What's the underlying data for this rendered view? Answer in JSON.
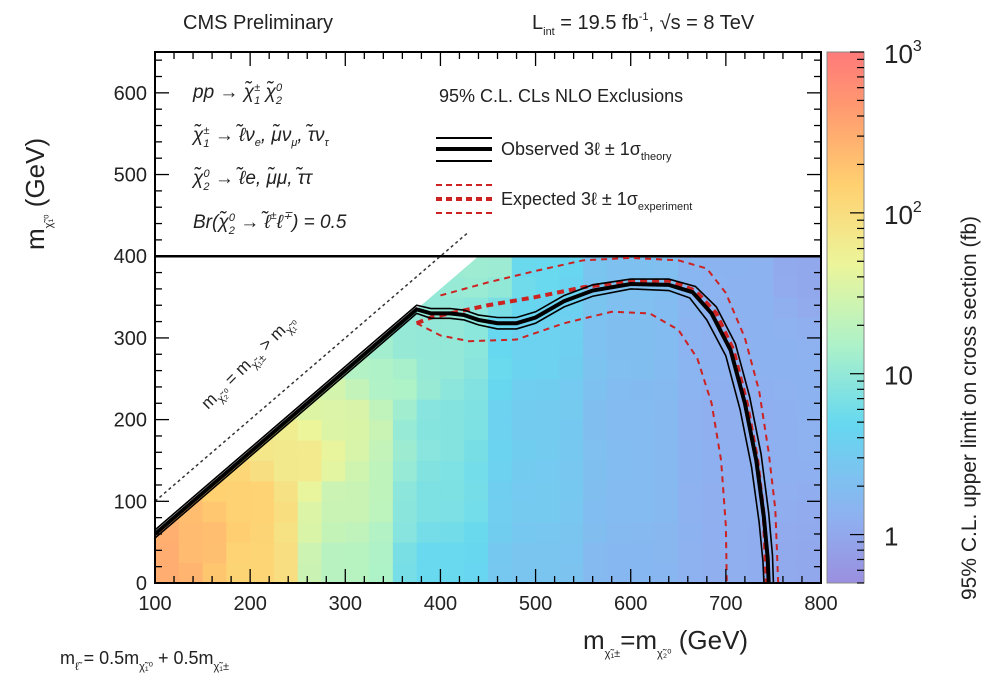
{
  "header": {
    "left": "CMS Preliminary",
    "right_lumi": "L",
    "right_lumi_sub": "int",
    "right_lumi_rest": " = 19.5 fb",
    "right_lumi_sup": "-1",
    "right_energy": ", √s = 8 TeV"
  },
  "legend": {
    "title": "95% C.L. CLs NLO Exclusions",
    "observed": "Observed 3ℓ ± 1σ",
    "observed_sub": "theory",
    "expected": "Expected 3ℓ ± 1σ",
    "expected_sub": "experiment"
  },
  "process": {
    "line1_a": "pp → χ̃",
    "line1_s1": "1",
    "line1_p1": "±",
    "line1_b": " χ̃",
    "line1_s2": "2",
    "line1_p2": "0",
    "line2_a": "χ̃",
    "line2_s1": "1",
    "line2_p1": "±",
    "line2_b": " → ℓ̃ν",
    "line2_s2": "e",
    "line2_c": ", μ̃ν",
    "line2_s3": "μ",
    "line2_d": ", τ̃ν",
    "line2_s4": "τ",
    "line3_a": "χ̃",
    "line3_s1": "2",
    "line3_p1": "0",
    "line3_b": " → ℓ̃e, μ̃μ, τ̃τ",
    "line4_a": "Br(χ̃",
    "line4_s1": "2",
    "line4_p1": "0",
    "line4_b": " → ℓ̃",
    "line4_p2": "±",
    "line4_c": "ℓ",
    "line4_p3": "∓",
    "line4_d": ") = 0.5"
  },
  "diag_label": {
    "a": "m",
    "s1": "χ̃₂⁰",
    "b": " = m",
    "s2": "χ̃₁±",
    "c": " > m",
    "s3": "χ̃₁⁰"
  },
  "footnote": {
    "a": "m",
    "s1": "ℓ̃",
    "b": " = 0.5m",
    "s2": "χ̃₁⁰",
    "c": " + 0.5m",
    "s3": "χ̃₁±"
  },
  "axes": {
    "ylabel_main": "m",
    "ylabel_sub": "χ̃₁⁰",
    "ylabel_unit": " (GeV)",
    "xlabel_a": "m",
    "xlabel_s1": "χ̃₁±",
    "xlabel_b": "=m",
    "xlabel_s2": "χ̃₂⁰",
    "xlabel_unit": "  (GeV)",
    "zlabel": "95% C.L. upper limit on cross section (fb)"
  },
  "chart_data": {
    "type": "heatmap",
    "xlim": [
      100,
      800
    ],
    "ylim": [
      0,
      650
    ],
    "x_ticks": [
      100,
      200,
      300,
      400,
      500,
      600,
      700,
      800
    ],
    "y_ticks": [
      0,
      100,
      200,
      300,
      400,
      500,
      600
    ],
    "z_scale": "log",
    "zlim": [
      0.5,
      1000
    ],
    "z_ticks": [
      {
        "value": 1,
        "label": "1"
      },
      {
        "value": 10,
        "label": "10"
      },
      {
        "value": 100,
        "label": "10",
        "sup": "2"
      },
      {
        "value": 1000,
        "label": "10",
        "sup": "3"
      }
    ],
    "colors": {
      "observed": "#000000",
      "expected": "#cc2222",
      "diagonal": "#333333"
    },
    "kinematic_line": [
      [
        100,
        60
      ],
      [
        375,
        335
      ]
    ],
    "diagonal_line": [
      [
        100,
        100
      ],
      [
        430,
        430
      ]
    ],
    "observed": [
      [
        100,
        60
      ],
      [
        375,
        335
      ],
      [
        390,
        330
      ],
      [
        410,
        330
      ],
      [
        425,
        328
      ],
      [
        440,
        322
      ],
      [
        460,
        318
      ],
      [
        480,
        318
      ],
      [
        500,
        325
      ],
      [
        530,
        345
      ],
      [
        560,
        358
      ],
      [
        600,
        366
      ],
      [
        640,
        365
      ],
      [
        665,
        356
      ],
      [
        685,
        330
      ],
      [
        705,
        285
      ],
      [
        720,
        220
      ],
      [
        732,
        150
      ],
      [
        740,
        80
      ],
      [
        744,
        30
      ],
      [
        745,
        0
      ]
    ],
    "observed_plus": [
      [
        100,
        65
      ],
      [
        375,
        340
      ],
      [
        390,
        336
      ],
      [
        410,
        336
      ],
      [
        425,
        334
      ],
      [
        440,
        328
      ],
      [
        460,
        325
      ],
      [
        480,
        325
      ],
      [
        500,
        332
      ],
      [
        530,
        352
      ],
      [
        560,
        365
      ],
      [
        600,
        372
      ],
      [
        640,
        372
      ],
      [
        668,
        363
      ],
      [
        690,
        338
      ],
      [
        710,
        293
      ],
      [
        725,
        228
      ],
      [
        737,
        158
      ],
      [
        745,
        86
      ],
      [
        749,
        34
      ],
      [
        750,
        0
      ]
    ],
    "observed_minus": [
      [
        100,
        55
      ],
      [
        375,
        330
      ],
      [
        390,
        324
      ],
      [
        410,
        324
      ],
      [
        425,
        322
      ],
      [
        440,
        316
      ],
      [
        460,
        311
      ],
      [
        480,
        311
      ],
      [
        500,
        318
      ],
      [
        530,
        338
      ],
      [
        560,
        351
      ],
      [
        600,
        360
      ],
      [
        640,
        358
      ],
      [
        662,
        349
      ],
      [
        680,
        322
      ],
      [
        700,
        278
      ],
      [
        715,
        212
      ],
      [
        727,
        142
      ],
      [
        735,
        74
      ],
      [
        739,
        26
      ],
      [
        740,
        0
      ]
    ],
    "expected": [
      [
        375,
        318
      ],
      [
        390,
        325
      ],
      [
        410,
        330
      ],
      [
        450,
        340
      ],
      [
        500,
        350
      ],
      [
        550,
        362
      ],
      [
        600,
        370
      ],
      [
        640,
        370
      ],
      [
        668,
        358
      ],
      [
        690,
        330
      ],
      [
        708,
        285
      ],
      [
        722,
        220
      ],
      [
        733,
        150
      ],
      [
        740,
        80
      ],
      [
        743,
        0
      ]
    ],
    "expected_plus": [
      [
        400,
        352
      ],
      [
        450,
        368
      ],
      [
        500,
        382
      ],
      [
        550,
        395
      ],
      [
        600,
        398
      ],
      [
        650,
        395
      ],
      [
        680,
        385
      ],
      [
        700,
        355
      ],
      [
        720,
        300
      ],
      [
        735,
        235
      ],
      [
        745,
        160
      ],
      [
        752,
        90
      ],
      [
        755,
        0
      ]
    ],
    "expected_minus": [
      [
        375,
        318
      ],
      [
        400,
        303
      ],
      [
        430,
        296
      ],
      [
        480,
        298
      ],
      [
        530,
        318
      ],
      [
        580,
        332
      ],
      [
        620,
        330
      ],
      [
        650,
        310
      ],
      [
        670,
        275
      ],
      [
        685,
        220
      ],
      [
        695,
        150
      ],
      [
        700,
        70
      ],
      [
        701,
        0
      ]
    ],
    "heat_samples": [
      [
        100,
        0,
        300
      ],
      [
        100,
        50,
        300
      ],
      [
        150,
        50,
        220
      ],
      [
        200,
        100,
        140
      ],
      [
        250,
        150,
        70
      ],
      [
        300,
        200,
        35
      ],
      [
        350,
        250,
        16
      ],
      [
        380,
        280,
        10
      ],
      [
        100,
        25,
        320
      ],
      [
        200,
        25,
        130
      ],
      [
        300,
        25,
        18
      ],
      [
        400,
        25,
        5
      ],
      [
        500,
        25,
        2.5
      ],
      [
        600,
        25,
        1.6
      ],
      [
        700,
        25,
        1.2
      ],
      [
        800,
        25,
        1.0
      ],
      [
        300,
        100,
        25
      ],
      [
        400,
        100,
        7
      ],
      [
        500,
        100,
        3
      ],
      [
        600,
        100,
        1.8
      ],
      [
        700,
        100,
        1.2
      ],
      [
        400,
        200,
        8
      ],
      [
        500,
        200,
        3.2
      ],
      [
        600,
        200,
        1.8
      ],
      [
        700,
        200,
        1.2
      ],
      [
        400,
        300,
        10
      ],
      [
        500,
        300,
        4
      ],
      [
        600,
        300,
        2
      ],
      [
        700,
        300,
        1.3
      ],
      [
        450,
        390,
        12
      ],
      [
        500,
        390,
        5
      ],
      [
        600,
        390,
        2.2
      ],
      [
        700,
        390,
        1.4
      ],
      [
        800,
        390,
        1.0
      ]
    ],
    "legend_box_floor": 400
  }
}
